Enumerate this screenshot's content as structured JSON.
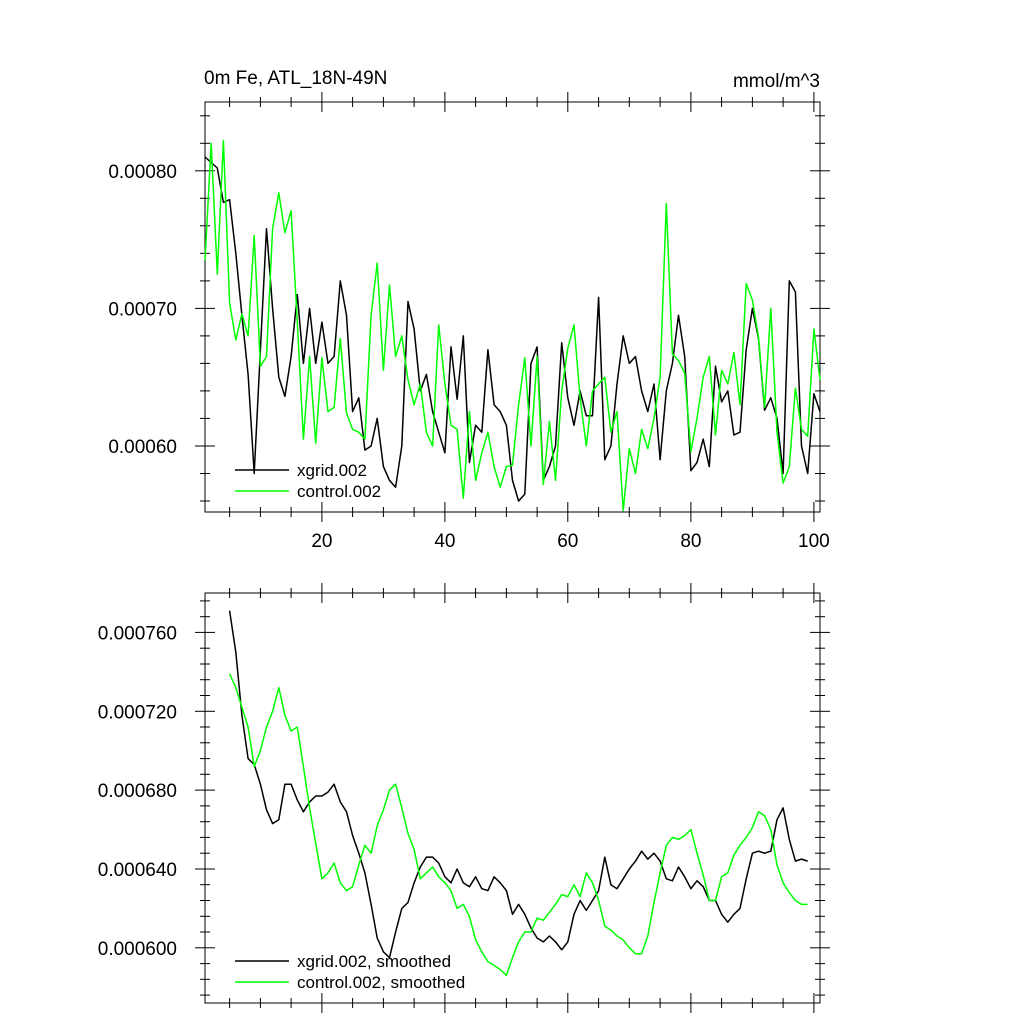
{
  "chart_data": [
    {
      "type": "line",
      "title_left": "0m Fe, ATL_18N-49N",
      "title_right": "mmol/m^3",
      "xlim": [
        1,
        101
      ],
      "ylim": [
        0.000552,
        0.00085
      ],
      "x_ticks": [
        20,
        40,
        60,
        80,
        100
      ],
      "x_tick_labels": [
        "20",
        "40",
        "60",
        "80",
        "100"
      ],
      "y_ticks": [
        0.0006,
        0.0007,
        0.0008
      ],
      "y_tick_labels": [
        "0.00060",
        "0.00070",
        "0.00080"
      ],
      "legend_position": "bottom-left",
      "series": [
        {
          "name": "xgrid.002",
          "color": "#000000",
          "values": [
            0.00081,
            0.000806,
            0.000802,
            0.000777,
            0.000779,
            0.00074,
            0.000695,
            0.000652,
            0.00058,
            0.00067,
            0.000758,
            0.0007,
            0.00065,
            0.000636,
            0.000665,
            0.00071,
            0.00066,
            0.0007,
            0.00066,
            0.00069,
            0.00066,
            0.000665,
            0.00072,
            0.000695,
            0.000625,
            0.000635,
            0.000597,
            0.0006,
            0.00062,
            0.000585,
            0.000575,
            0.00057,
            0.0006,
            0.000705,
            0.000685,
            0.00064,
            0.000652,
            0.000625,
            0.00061,
            0.000595,
            0.000672,
            0.000634,
            0.00068,
            0.000588,
            0.000615,
            0.00061,
            0.00067,
            0.00063,
            0.000625,
            0.000615,
            0.000575,
            0.00056,
            0.000565,
            0.00066,
            0.000672,
            0.000575,
            0.000585,
            0.0006,
            0.000675,
            0.000635,
            0.000615,
            0.00064,
            0.000622,
            0.000622,
            0.000708,
            0.00059,
            0.0006,
            0.000645,
            0.00068,
            0.00066,
            0.000665,
            0.00064,
            0.000625,
            0.000645,
            0.00059,
            0.00064,
            0.00066,
            0.000695,
            0.000665,
            0.000582,
            0.000588,
            0.000605,
            0.000585,
            0.000658,
            0.000632,
            0.00064,
            0.000608,
            0.00061,
            0.00067,
            0.0007,
            0.000678,
            0.000626,
            0.000635,
            0.00062,
            0.00058,
            0.00072,
            0.000712,
            0.0006,
            0.00058,
            0.000638,
            0.000625
          ]
        },
        {
          "name": "control.002",
          "color": "#00ff00",
          "values": [
            0.000735,
            0.00082,
            0.000725,
            0.000822,
            0.000704,
            0.000677,
            0.000696,
            0.00068,
            0.000753,
            0.000658,
            0.000665,
            0.000758,
            0.000784,
            0.000755,
            0.000771,
            0.00069,
            0.000605,
            0.000665,
            0.000602,
            0.000664,
            0.000625,
            0.000628,
            0.000678,
            0.000624,
            0.000612,
            0.00061,
            0.000605,
            0.000695,
            0.000733,
            0.000655,
            0.000717,
            0.000665,
            0.00068,
            0.000648,
            0.00063,
            0.000645,
            0.00061,
            0.0006,
            0.000688,
            0.000645,
            0.000615,
            0.000612,
            0.000562,
            0.000625,
            0.000575,
            0.000595,
            0.00061,
            0.000585,
            0.00057,
            0.000585,
            0.000586,
            0.00063,
            0.000664,
            0.0006,
            0.000665,
            0.000572,
            0.000618,
            0.000575,
            0.00064,
            0.000671,
            0.000688,
            0.000635,
            0.0006,
            0.00064,
            0.000645,
            0.00065,
            0.00061,
            0.000625,
            0.000553,
            0.000598,
            0.00058,
            0.000612,
            0.000598,
            0.00062,
            0.00065,
            0.000776,
            0.000667,
            0.000662,
            0.000653,
            0.000596,
            0.00062,
            0.00065,
            0.000665,
            0.000608,
            0.000655,
            0.000645,
            0.000668,
            0.00063,
            0.000718,
            0.000706,
            0.000679,
            0.000628,
            0.0007,
            0.00061,
            0.000573,
            0.000585,
            0.000642,
            0.000612,
            0.000607,
            0.000685,
            0.000648
          ]
        }
      ]
    },
    {
      "type": "line",
      "xlim": [
        1,
        101
      ],
      "ylim": [
        0.000572,
        0.00078
      ],
      "x_ticks": [
        20,
        40,
        60,
        80,
        100
      ],
      "x_tick_labels": [],
      "y_ticks": [
        0.0006,
        0.00064,
        0.00068,
        0.00072,
        0.00076
      ],
      "y_tick_labels": [
        "0.000600",
        "0.000640",
        "0.000680",
        "0.000720",
        "0.000760"
      ],
      "legend_position": "bottom-left",
      "series": [
        {
          "name": "xgrid.002, smoothed",
          "color": "#000000",
          "x_start": 5,
          "values": [
            0.000771,
            0.00075,
            0.000718,
            0.000696,
            0.000693,
            0.000683,
            0.00067,
            0.000663,
            0.000665,
            0.000683,
            0.000683,
            0.000675,
            0.000669,
            0.000674,
            0.000677,
            0.000677,
            0.000679,
            0.000683,
            0.000674,
            0.000669,
            0.000657,
            0.000648,
            0.000638,
            0.000622,
            0.000605,
            0.000598,
            0.000595,
            0.000608,
            0.00062,
            0.000623,
            0.000633,
            0.000641,
            0.000646,
            0.000646,
            0.000643,
            0.000636,
            0.000633,
            0.00064,
            0.000633,
            0.000631,
            0.000636,
            0.00063,
            0.000629,
            0.000636,
            0.000633,
            0.000629,
            0.000617,
            0.000622,
            0.000617,
            0.00061,
            0.000605,
            0.000603,
            0.000606,
            0.000603,
            0.000599,
            0.000603,
            0.000617,
            0.000624,
            0.000619,
            0.000624,
            0.000629,
            0.000646,
            0.000632,
            0.00063,
            0.000635,
            0.00064,
            0.000644,
            0.000649,
            0.000645,
            0.000648,
            0.000644,
            0.000635,
            0.000634,
            0.000641,
            0.000636,
            0.00063,
            0.000634,
            0.000631,
            0.000624,
            0.000624,
            0.000617,
            0.000613,
            0.000617,
            0.00062,
            0.000635,
            0.000648,
            0.000649,
            0.000648,
            0.000649,
            0.000665,
            0.000671,
            0.000655,
            0.000644,
            0.000645,
            0.000644
          ]
        },
        {
          "name": "control.002, smoothed",
          "color": "#00ff00",
          "x_start": 5,
          "values": [
            0.000739,
            0.000732,
            0.000722,
            0.000712,
            0.000692,
            0.0007,
            0.000712,
            0.00072,
            0.000732,
            0.000718,
            0.00071,
            0.000712,
            0.000692,
            0.000671,
            0.000653,
            0.000635,
            0.000638,
            0.000643,
            0.000633,
            0.000629,
            0.000631,
            0.000642,
            0.000652,
            0.000648,
            0.000662,
            0.00067,
            0.00068,
            0.000683,
            0.000671,
            0.000658,
            0.00065,
            0.000635,
            0.000638,
            0.000641,
            0.000636,
            0.000633,
            0.000629,
            0.00062,
            0.000622,
            0.000616,
            0.000604,
            0.000598,
            0.000593,
            0.000591,
            0.000589,
            0.000586,
            0.000595,
            0.000603,
            0.000608,
            0.000608,
            0.000615,
            0.000614,
            0.000618,
            0.000622,
            0.000627,
            0.000626,
            0.000632,
            0.000626,
            0.000638,
            0.000633,
            0.000624,
            0.000611,
            0.000609,
            0.000606,
            0.000604,
            0.0006,
            0.000597,
            0.000597,
            0.000606,
            0.000623,
            0.000638,
            0.000652,
            0.000656,
            0.000655,
            0.000657,
            0.00066,
            0.000648,
            0.000637,
            0.000624,
            0.000624,
            0.000636,
            0.000638,
            0.000647,
            0.000652,
            0.000656,
            0.000661,
            0.000669,
            0.000667,
            0.00066,
            0.000642,
            0.000633,
            0.000628,
            0.000624,
            0.000622,
            0.000622
          ]
        }
      ]
    }
  ]
}
